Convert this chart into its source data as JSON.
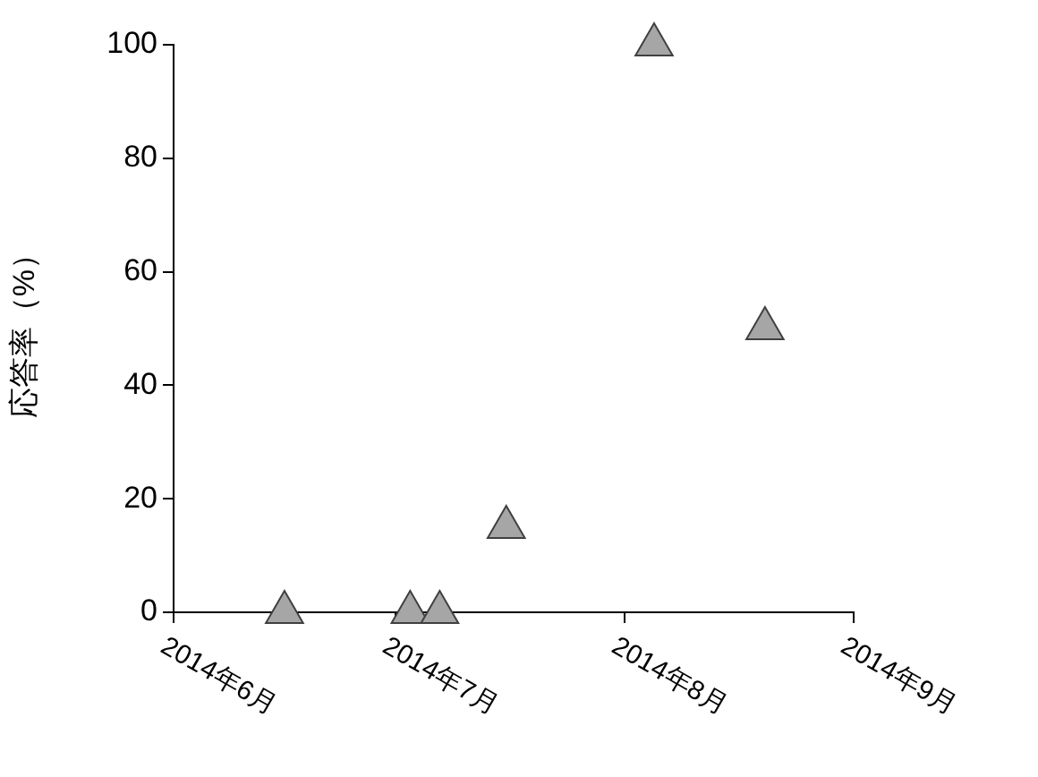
{
  "chart_data": {
    "type": "scatter",
    "ylabel": "応答率（%）",
    "marker": "triangle",
    "grid": false,
    "legend": false,
    "x": [
      "2014-06-16",
      "2014-07-03",
      "2014-07-07",
      "2014-07-16",
      "2014-08-05",
      "2014-08-20"
    ],
    "series": [
      {
        "color": "#a6a6a6",
        "values": [
          0,
          0,
          0,
          15,
          100,
          50
        ]
      }
    ],
    "xlim": [
      "2014-06",
      "2014-09"
    ],
    "xticks": [
      {
        "value": "2014-06",
        "label": "2014年6月"
      },
      {
        "value": "2014-07",
        "label": "2014年7月"
      },
      {
        "value": "2014-08",
        "label": "2014年8月"
      },
      {
        "value": "2014-09",
        "label": "2014年9月"
      }
    ],
    "ylim": [
      0,
      100
    ],
    "yticks": [
      0,
      20,
      40,
      60,
      80,
      100
    ]
  }
}
